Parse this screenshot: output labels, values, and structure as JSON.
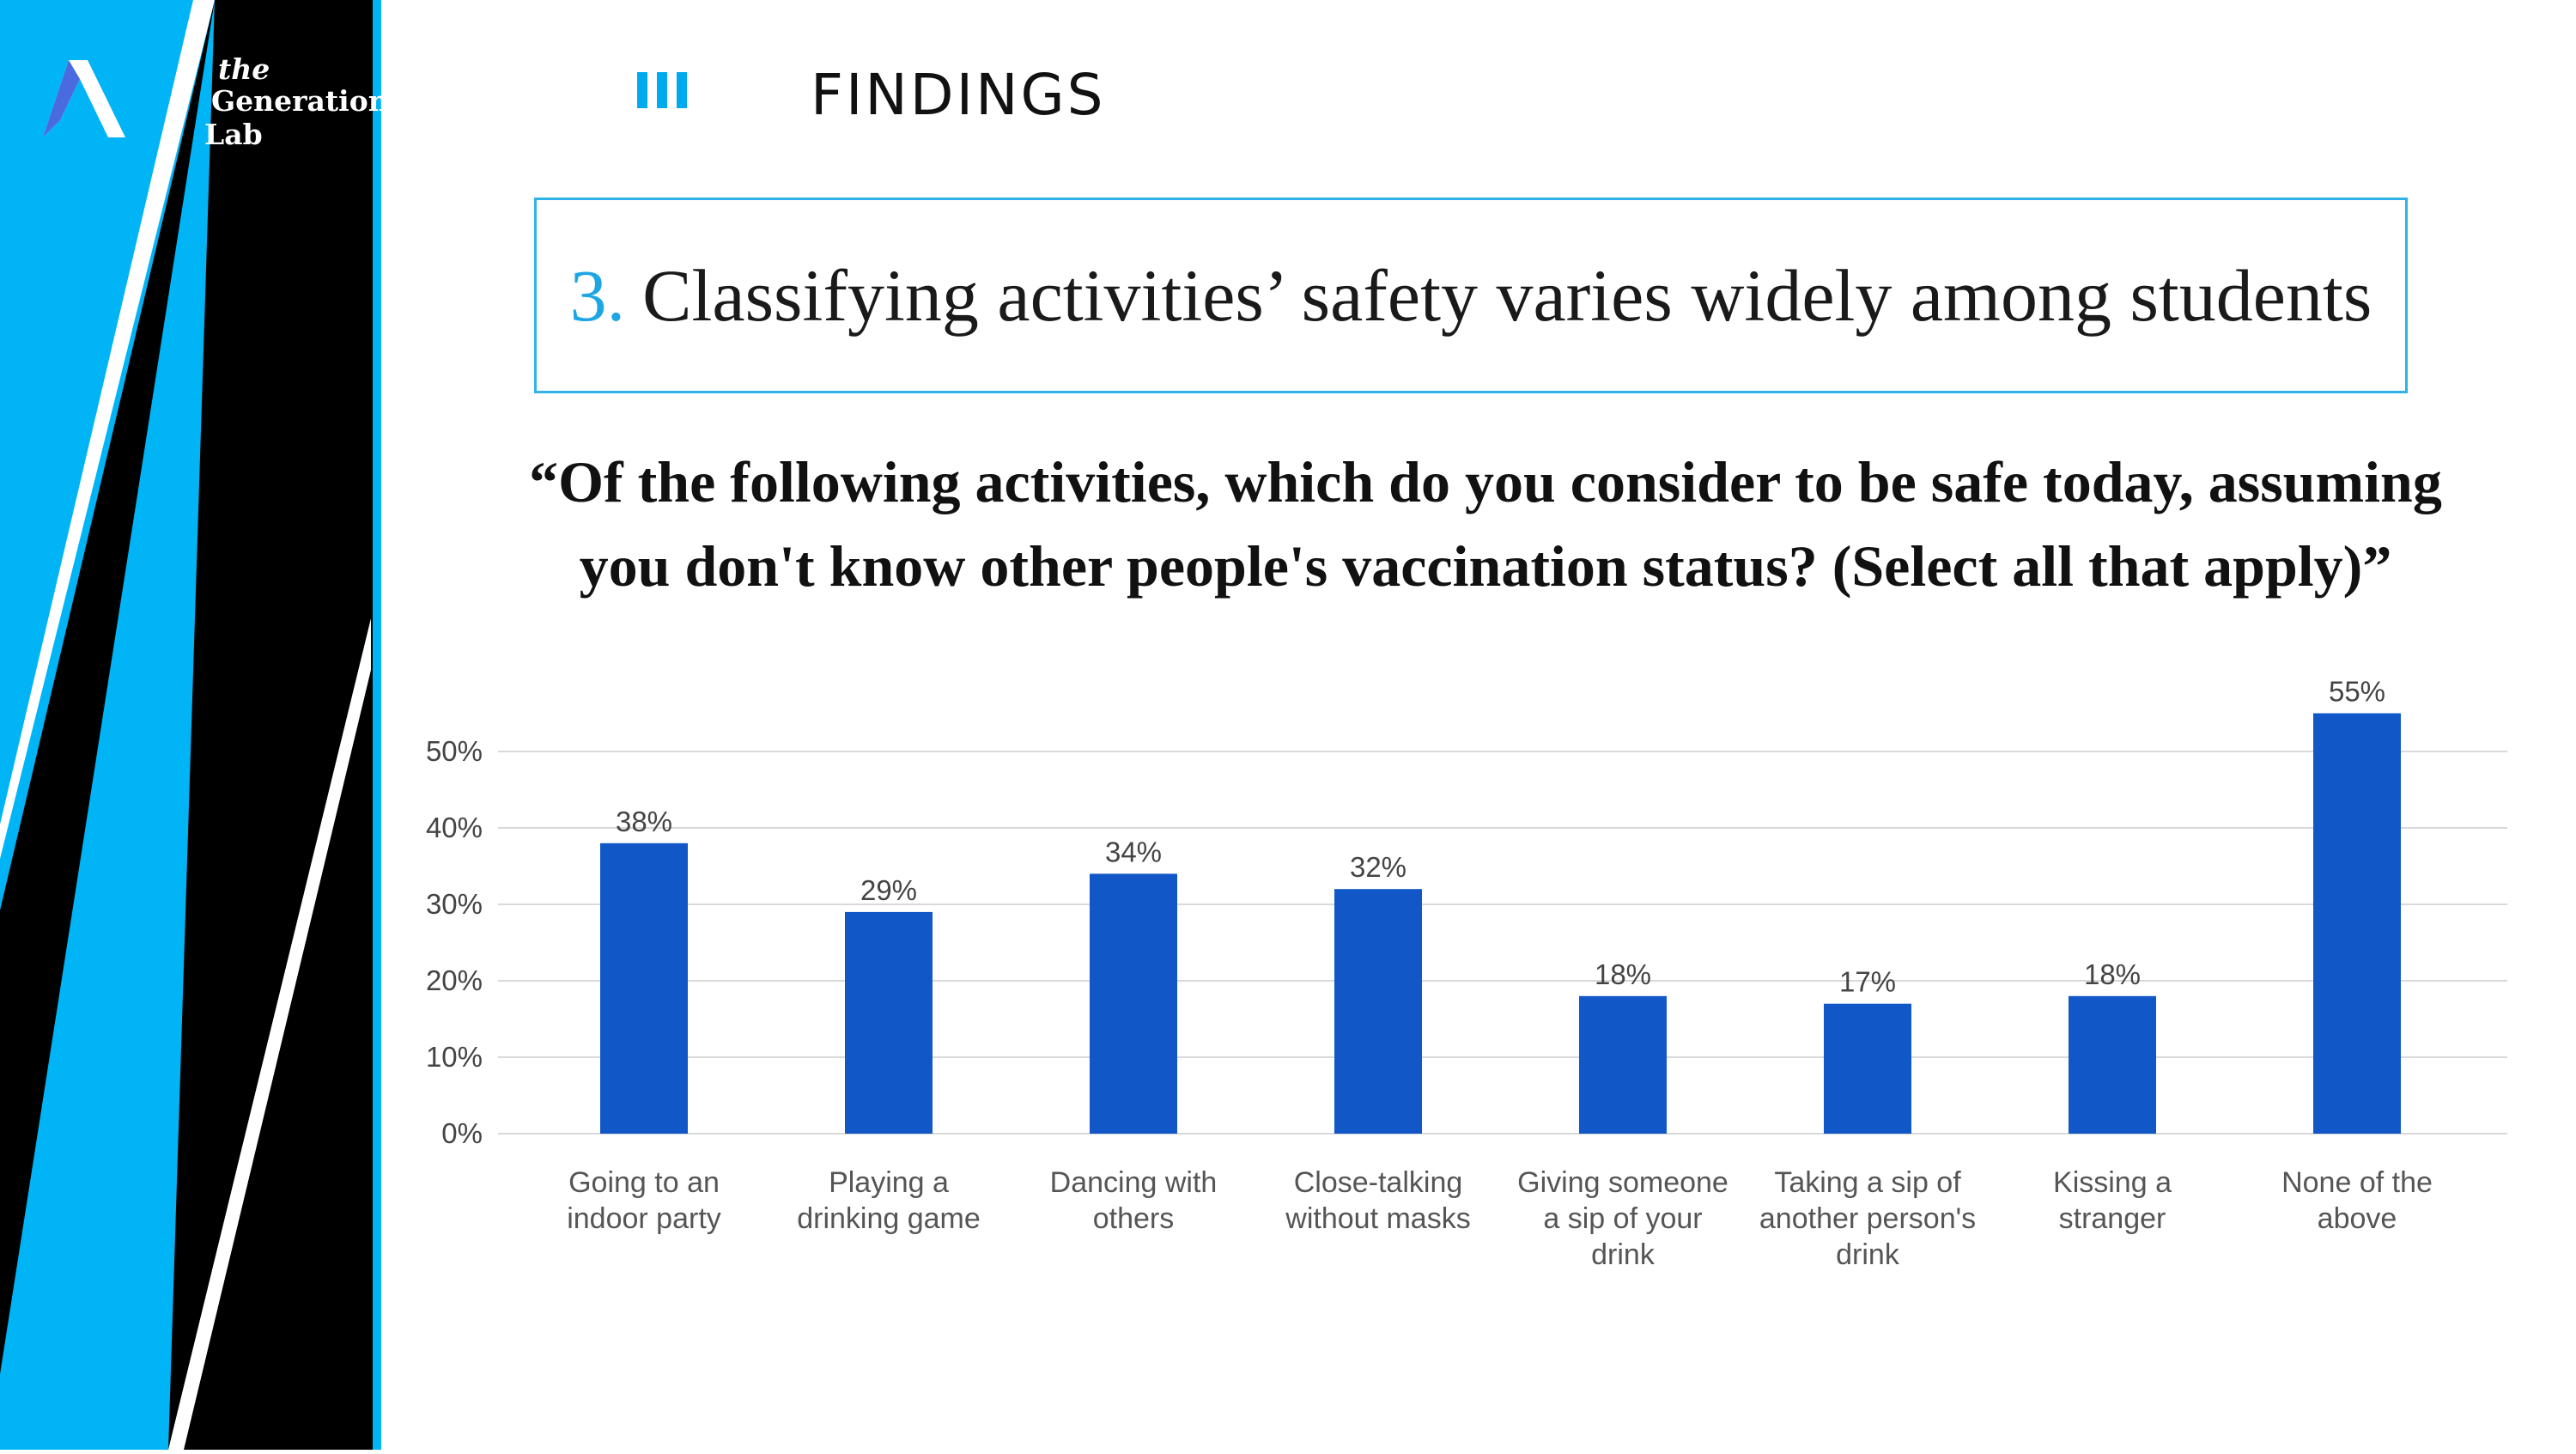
{
  "brand": {
    "line1": "the",
    "line2": "Generation",
    "line3": "Lab"
  },
  "section": {
    "label": "FINDINGS",
    "icon": "roman-three-bars-icon"
  },
  "headline": {
    "number": "3.",
    "text": "Classifying activities’ safety varies widely among students"
  },
  "question": {
    "line1": "“Of the following activities, which do you consider to be safe today, assuming",
    "line2": "you don't know other people's vaccination status? (Select all that apply)”"
  },
  "colors": {
    "accent": "#00b4f5",
    "dark": "#000000",
    "bar": "#1257c8",
    "title_accent": "#1ea6e3"
  },
  "chart_data": {
    "type": "bar",
    "categories": [
      [
        "Going to an",
        "indoor party"
      ],
      [
        "Playing a",
        "drinking game"
      ],
      [
        "Dancing with",
        "others"
      ],
      [
        "Close-talking",
        "without masks"
      ],
      [
        "Giving someone",
        "a sip of your",
        "drink"
      ],
      [
        "Taking a sip of",
        "another person's",
        "drink"
      ],
      [
        "Kissing a",
        "stranger"
      ],
      [
        "None of the",
        "above"
      ]
    ],
    "values": [
      38,
      29,
      34,
      32,
      18,
      17,
      18,
      55
    ],
    "value_labels": [
      "38%",
      "29%",
      "34%",
      "32%",
      "18%",
      "17%",
      "18%",
      "55%"
    ],
    "y_ticks": [
      0,
      10,
      20,
      30,
      40,
      50
    ],
    "y_tick_labels": [
      "0%",
      "10%",
      "20%",
      "30%",
      "40%",
      "50%"
    ],
    "ylim": [
      0,
      55
    ],
    "grid": true
  }
}
